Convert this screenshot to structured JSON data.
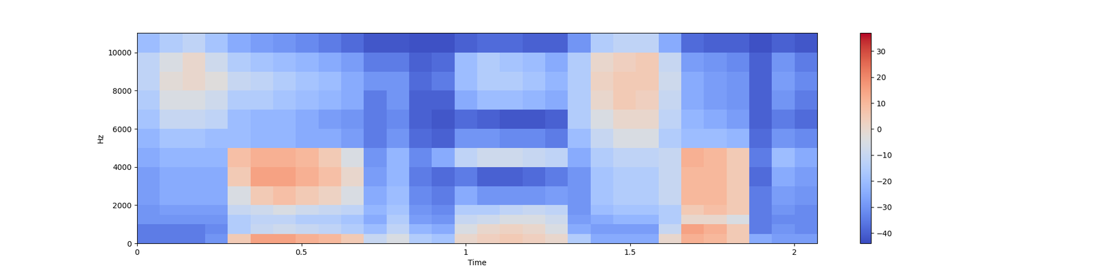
{
  "chart_data": {
    "type": "heatmap",
    "x_label": "Time",
    "y_label": "Hz",
    "xlim": [
      0,
      2.07
    ],
    "ylim": [
      0,
      11025
    ],
    "xticks": [
      0,
      0.5,
      1,
      1.5,
      2
    ],
    "yticks": [
      0,
      2000,
      4000,
      6000,
      8000,
      10000
    ],
    "x_edges": [
      0,
      0.069,
      0.138,
      0.207,
      0.276,
      0.345,
      0.414,
      0.483,
      0.552,
      0.621,
      0.69,
      0.759,
      0.828,
      0.897,
      0.966,
      1.035,
      1.104,
      1.173,
      1.242,
      1.311,
      1.38,
      1.449,
      1.518,
      1.587,
      1.656,
      1.725,
      1.794,
      1.863,
      1.932,
      2.001,
      2.07
    ],
    "y_edges": [
      0,
      500,
      1000,
      1500,
      2000,
      3000,
      4000,
      5000,
      6000,
      7000,
      8000,
      9000,
      10000,
      11025
    ],
    "cells": [
      [
        -35,
        -35,
        -30,
        -30,
        -28,
        -28,
        -25,
        -22,
        -18,
        -15,
        -12,
        -12,
        -20
      ],
      [
        -35,
        -35,
        -30,
        -28,
        -25,
        -25,
        -22,
        -18,
        -10,
        -5,
        -2,
        -5,
        -15
      ],
      [
        -35,
        -35,
        -30,
        -28,
        -25,
        -25,
        -22,
        -18,
        -10,
        -5,
        0,
        0,
        -12
      ],
      [
        -30,
        -32,
        -30,
        -28,
        -25,
        -25,
        -22,
        -20,
        -12,
        -8,
        -3,
        -8,
        -18
      ],
      [
        5,
        -15,
        -15,
        -10,
        -5,
        5,
        8,
        -20,
        -20,
        -15,
        -10,
        -15,
        -25
      ],
      [
        15,
        -10,
        -12,
        -8,
        5,
        15,
        12,
        -22,
        -22,
        -15,
        -12,
        -18,
        -28
      ],
      [
        15,
        -8,
        -12,
        -5,
        8,
        15,
        12,
        -22,
        -22,
        -18,
        -15,
        -20,
        -30
      ],
      [
        12,
        -10,
        -15,
        -8,
        5,
        12,
        10,
        -25,
        -25,
        -20,
        -18,
        -22,
        -32
      ],
      [
        10,
        -12,
        -15,
        -10,
        2,
        8,
        5,
        -25,
        -28,
        -22,
        -20,
        -25,
        -35
      ],
      [
        5,
        -15,
        -18,
        -12,
        -5,
        0,
        -5,
        -28,
        -30,
        -25,
        -25,
        -28,
        -38
      ],
      [
        -10,
        -20,
        -25,
        -22,
        -25,
        -28,
        -30,
        -35,
        -35,
        -35,
        -30,
        -35,
        -42
      ],
      [
        -5,
        -12,
        -15,
        -18,
        -20,
        -22,
        -22,
        -30,
        -32,
        -30,
        -30,
        -35,
        -42
      ],
      [
        -15,
        -22,
        -28,
        -30,
        -32,
        -35,
        -32,
        -38,
        -40,
        -40,
        -38,
        -40,
        -43
      ],
      [
        -18,
        -25,
        -30,
        -32,
        -35,
        -38,
        -25,
        -40,
        -42,
        -40,
        -35,
        -38,
        -43
      ],
      [
        0,
        -5,
        -10,
        -15,
        -25,
        -35,
        -12,
        -30,
        -38,
        -25,
        -20,
        -20,
        -40
      ],
      [
        3,
        0,
        -8,
        -15,
        -30,
        -40,
        -8,
        -30,
        -40,
        -20,
        -15,
        -15,
        -38
      ],
      [
        5,
        2,
        -5,
        -12,
        -30,
        -40,
        -8,
        -32,
        -42,
        -20,
        -15,
        -18,
        -38
      ],
      [
        3,
        0,
        -5,
        -10,
        -30,
        -38,
        -10,
        -32,
        -42,
        -22,
        -18,
        -20,
        -40
      ],
      [
        0,
        -5,
        -8,
        -12,
        -28,
        -35,
        -12,
        -35,
        -40,
        -25,
        -22,
        -25,
        -40
      ],
      [
        -15,
        -25,
        -28,
        -30,
        -30,
        -30,
        -25,
        -20,
        -15,
        -15,
        -15,
        -15,
        -30
      ],
      [
        -25,
        -28,
        -25,
        -20,
        -18,
        -18,
        -15,
        -10,
        -5,
        0,
        2,
        0,
        -15
      ],
      [
        -25,
        -28,
        -22,
        -18,
        -15,
        -15,
        -12,
        -5,
        0,
        5,
        5,
        3,
        -12
      ],
      [
        -25,
        -28,
        -22,
        -18,
        -15,
        -15,
        -12,
        -5,
        0,
        3,
        5,
        5,
        -12
      ],
      [
        0,
        -10,
        -15,
        -15,
        -10,
        -10,
        -10,
        -15,
        -12,
        -10,
        -8,
        -10,
        -25
      ],
      [
        12,
        15,
        0,
        5,
        10,
        10,
        12,
        -20,
        -22,
        -25,
        -25,
        -28,
        -38
      ],
      [
        10,
        12,
        0,
        8,
        10,
        10,
        10,
        -20,
        -25,
        -28,
        -28,
        -30,
        -40
      ],
      [
        5,
        5,
        -5,
        5,
        5,
        5,
        5,
        -22,
        -28,
        -30,
        -30,
        -32,
        -40
      ],
      [
        -25,
        -35,
        -35,
        -35,
        -35,
        -38,
        -35,
        -38,
        -40,
        -40,
        -40,
        -40,
        -43
      ],
      [
        -28,
        -30,
        -32,
        -30,
        -28,
        -25,
        -20,
        -30,
        -35,
        -30,
        -28,
        -30,
        -40
      ],
      [
        -28,
        -32,
        -32,
        -32,
        -30,
        -28,
        -25,
        -32,
        -38,
        -35,
        -32,
        -35,
        -42
      ]
    ],
    "colorbar_range": [
      -44,
      37
    ],
    "colorbar_ticks": [
      {
        "value": -40,
        "label": "−40"
      },
      {
        "value": -30,
        "label": "−30"
      },
      {
        "value": -20,
        "label": "−20"
      },
      {
        "value": -10,
        "label": "−10"
      },
      0,
      10,
      20,
      30
    ]
  }
}
